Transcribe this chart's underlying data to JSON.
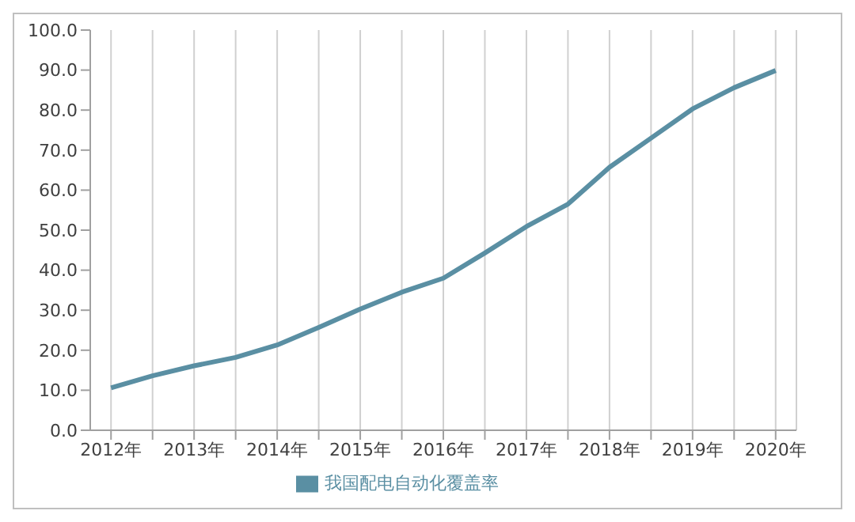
{
  "chart_data": {
    "type": "line",
    "x": [
      2012,
      2012.5,
      2013,
      2013.5,
      2014,
      2014.5,
      2015,
      2015.5,
      2016,
      2016.5,
      2017,
      2017.5,
      2018,
      2018.5,
      2019,
      2019.5,
      2020
    ],
    "series": [
      {
        "name": "我国配电自动化覆盖率",
        "color": "#5a8fa3",
        "values": [
          10.6,
          13.6,
          16.1,
          18.2,
          21.3,
          25.7,
          30.3,
          34.5,
          38.0,
          44.3,
          50.9,
          56.5,
          65.7,
          73.0,
          80.3,
          85.6,
          89.9
        ]
      }
    ],
    "xlim": [
      2011.75,
      2020.25
    ],
    "xticks": [
      {
        "value": 2012,
        "label": "2012年"
      },
      {
        "value": 2012.5,
        "label": null
      },
      {
        "value": 2013,
        "label": "2013年"
      },
      {
        "value": 2013.5,
        "label": null
      },
      {
        "value": 2014,
        "label": "2014年"
      },
      {
        "value": 2014.5,
        "label": null
      },
      {
        "value": 2015,
        "label": "2015年"
      },
      {
        "value": 2015.5,
        "label": null
      },
      {
        "value": 2016,
        "label": "2016年"
      },
      {
        "value": 2016.5,
        "label": null
      },
      {
        "value": 2017,
        "label": "2017年"
      },
      {
        "value": 2017.5,
        "label": null
      },
      {
        "value": 2018,
        "label": "2018年"
      },
      {
        "value": 2018.5,
        "label": null
      },
      {
        "value": 2019,
        "label": "2019年"
      },
      {
        "value": 2019.5,
        "label": null
      },
      {
        "value": 2020,
        "label": "2020年"
      }
    ],
    "ylim": [
      0,
      100
    ],
    "yticks": [
      {
        "value": 0,
        "label": "0.0"
      },
      {
        "value": 10,
        "label": "10.0"
      },
      {
        "value": 20,
        "label": "20.0"
      },
      {
        "value": 30,
        "label": "30.0"
      },
      {
        "value": 40,
        "label": "40.0"
      },
      {
        "value": 50,
        "label": "50.0"
      },
      {
        "value": 60,
        "label": "60.0"
      },
      {
        "value": 70,
        "label": "70.0"
      },
      {
        "value": 80,
        "label": "80.0"
      },
      {
        "value": 90,
        "label": "90.0"
      },
      {
        "value": 100,
        "label": "100.0"
      }
    ],
    "grid": "x",
    "legend": "bottom",
    "marker": "none",
    "line_style": "solid"
  }
}
